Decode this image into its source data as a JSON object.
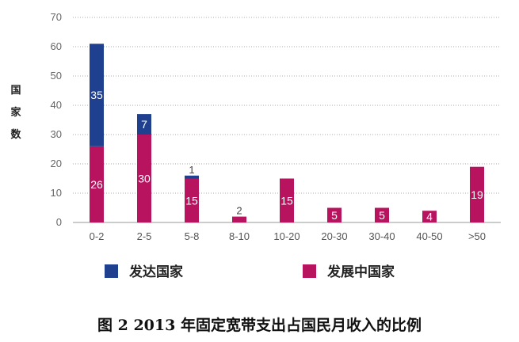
{
  "caption": "图 2 2013 年固定宽带支出占国民月收入的比例",
  "chart_data": {
    "type": "bar",
    "stacked": true,
    "categories": [
      "0-2",
      "2-5",
      "5-8",
      "8-10",
      "10-20",
      "20-30",
      "30-40",
      "40-50",
      ">50"
    ],
    "series": [
      {
        "name": "发展中国家",
        "color": "#b8135e",
        "values": [
          26,
          30,
          15,
          2,
          15,
          5,
          5,
          4,
          19
        ]
      },
      {
        "name": "发达国家",
        "color": "#1f3f8f",
        "values": [
          35,
          7,
          1,
          0,
          0,
          0,
          0,
          0,
          0
        ]
      }
    ],
    "ylabel": "国家数",
    "ylim": [
      0,
      70
    ],
    "yticks": [
      0,
      10,
      20,
      30,
      40,
      50,
      60,
      70
    ],
    "grid": true,
    "legend": "bottom"
  }
}
